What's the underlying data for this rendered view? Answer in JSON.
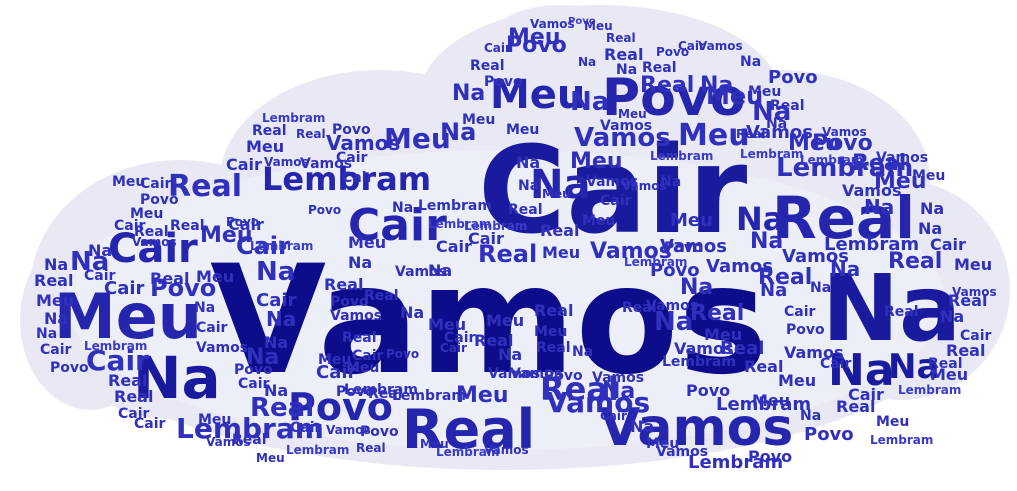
{
  "words": [
    {
      "text": "Vamos",
      "color": "#0d0d8c"
    },
    {
      "text": "Cair",
      "color": "#16169a"
    },
    {
      "text": "Na",
      "color": "#1a1a9e"
    },
    {
      "text": "Real",
      "color": "#2020a8"
    },
    {
      "text": "Meu",
      "color": "#2a2ab4"
    },
    {
      "text": "Povo",
      "color": "#2c2cb8"
    },
    {
      "text": "Lembram",
      "color": "#2828b0"
    }
  ],
  "palette": [
    "#0d0d8c",
    "#1a1a9e",
    "#2525ad",
    "#3030bc",
    "#3a3ac8"
  ]
}
